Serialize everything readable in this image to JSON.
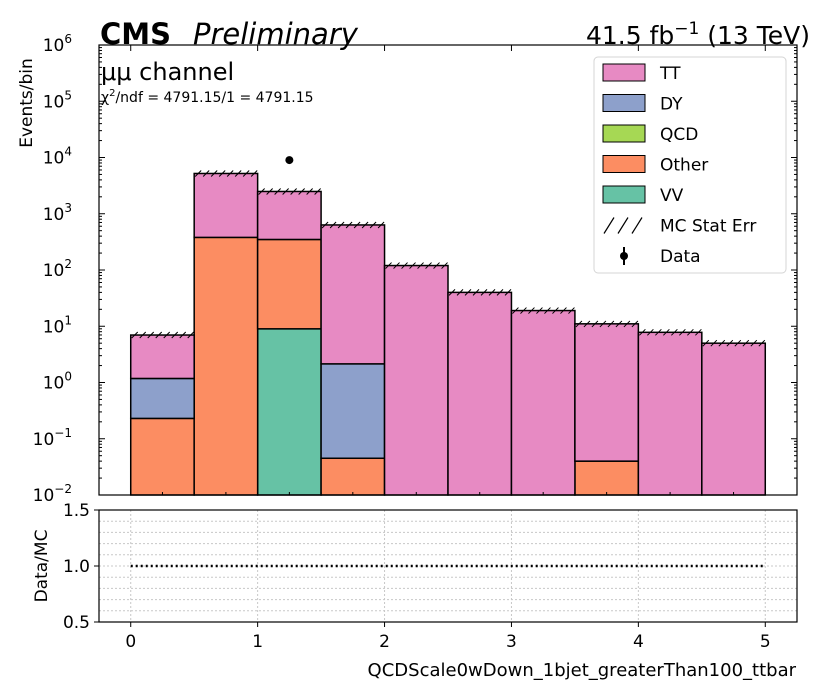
{
  "header": {
    "cms": "CMS",
    "preliminary": "Preliminary",
    "lumi_value": "41.5 fb",
    "lumi_exp": "−1",
    "lumi_energy": " (13 TeV)"
  },
  "annotations": {
    "channel": "μμ channel",
    "chi2_prefix": "χ",
    "chi2_sup": "2",
    "chi2_rest": "/ndf = 4791.15/1 = 4791.15"
  },
  "colors": {
    "TT": "#e78ac3",
    "DY": "#8da0cb",
    "QCD": "#a6d854",
    "Other": "#fc8d62",
    "VV": "#66c2a5"
  },
  "chart_data": [
    {
      "type": "bar",
      "stacked": true,
      "yscale": "log",
      "ylabel": "Events/bin",
      "ylim": [
        0.01,
        1000000
      ],
      "xlim": [
        -0.25,
        5.25
      ],
      "bin_edges": [
        0,
        0.5,
        1,
        1.5,
        2,
        2.5,
        3,
        3.5,
        4,
        4.5,
        5
      ],
      "y_ticks": [
        {
          "v": 0.01,
          "m": "10",
          "e": "−2"
        },
        {
          "v": 0.1,
          "m": "10",
          "e": "−1"
        },
        {
          "v": 1,
          "m": "10",
          "e": "0"
        },
        {
          "v": 10,
          "m": "10",
          "e": "1"
        },
        {
          "v": 100,
          "m": "10",
          "e": "2"
        },
        {
          "v": 1000,
          "m": "10",
          "e": "3"
        },
        {
          "v": 10000,
          "m": "10",
          "e": "4"
        },
        {
          "v": 100000,
          "m": "10",
          "e": "5"
        },
        {
          "v": 1000000,
          "m": "10",
          "e": "6"
        }
      ],
      "series": [
        {
          "name": "VV",
          "values": [
            0,
            0,
            9,
            0,
            0,
            0,
            0,
            0,
            0,
            0
          ]
        },
        {
          "name": "Other",
          "values": [
            0.23,
            380,
            340,
            0.045,
            0,
            0,
            0,
            0.04,
            0,
            0
          ]
        },
        {
          "name": "QCD",
          "values": [
            0,
            0,
            0,
            0,
            0,
            0,
            0,
            0,
            0,
            0
          ]
        },
        {
          "name": "DY",
          "values": [
            0.95,
            0,
            0,
            2.1,
            0,
            0,
            0,
            0,
            0,
            0
          ]
        },
        {
          "name": "TT",
          "values": [
            5.8,
            4820,
            2140,
            630,
            120,
            40,
            19,
            11,
            7.8,
            5
          ]
        }
      ],
      "totals": [
        7,
        5200,
        2490,
        632,
        120,
        40,
        19,
        11,
        7.8,
        5
      ],
      "data_points": [
        {
          "x": 1.25,
          "y": 9000
        }
      ],
      "legend": {
        "position": "top-right",
        "entries": [
          "TT",
          "DY",
          "QCD",
          "Other",
          "VV",
          "MC Stat Err",
          "Data"
        ]
      }
    },
    {
      "type": "line",
      "ylabel": "Data/MC",
      "xlabel": "QCDScale0wDown_1bjet_greaterThan100_ttbar",
      "ylim": [
        0.5,
        1.5
      ],
      "y_ticks": [
        "0.5",
        "1.0",
        "1.5"
      ],
      "x_ticks": [
        "0",
        "1",
        "2",
        "3",
        "4",
        "5"
      ],
      "grid": true,
      "reference_line": 1.0
    }
  ]
}
